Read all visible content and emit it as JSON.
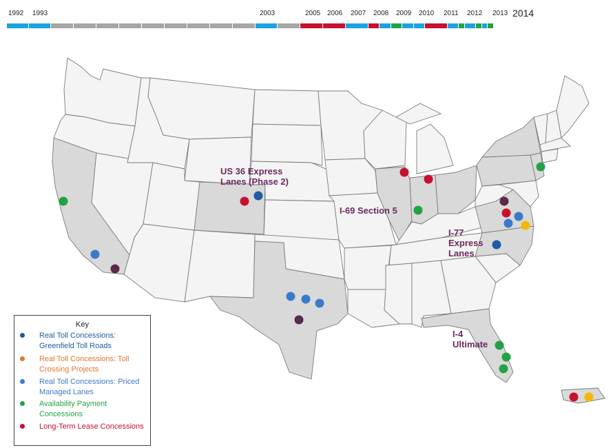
{
  "timeline": {
    "years": [
      "1992",
      "1993",
      "2003",
      "2005",
      "2006",
      "2007",
      "2008",
      "2009",
      "2010",
      "2011",
      "2012",
      "2013",
      "2014"
    ],
    "segment_colors": [
      "#1aa3e0",
      "#1aa3e0",
      "#a6a6a6",
      "#a6a6a6",
      "#a6a6a6",
      "#a6a6a6",
      "#a6a6a6",
      "#a6a6a6",
      "#a6a6a6",
      "#a6a6a6",
      "#a6a6a6",
      "#1aa3e0",
      "#a6a6a6",
      "#c8102e",
      "#c8102e",
      "#1aa3e0",
      "#c8102e",
      "#1aa3e0",
      "#22a245",
      "#1aa3e0",
      "#1aa3e0",
      "#c8102e",
      "#1aa3e0",
      "#22a245",
      "#1aa3e0",
      "#22a245",
      "#1aa3e0",
      "#22a245"
    ]
  },
  "map_labels": {
    "us36": "US 36 Express Lanes (Phase 2)",
    "i69": "I-69 Section 5",
    "i77": "I-77 Express Lanes",
    "i4": "I-4 Ultimate"
  },
  "key": {
    "title": "Key",
    "items": [
      {
        "label": "Real Toll Concessions: Greenfield Toll Roads",
        "color": "#1d5c9e"
      },
      {
        "label": "Real Toll Concessions: Toll Crossing Projects",
        "color": "#e0762b"
      },
      {
        "label": "Real Toll Concessions: Priced Managed Lanes",
        "color": "#3a7bc8"
      },
      {
        "label": "Availability Payment Concessions",
        "color": "#22a245"
      },
      {
        "label": "Long-Term Lease Concessions",
        "color": "#c8102e"
      }
    ]
  },
  "colors": {
    "active_state": "#d9d9d9",
    "inactive_state": "#f4f4f5",
    "label_purple": "#6a2a5c",
    "other_project": "#5a2a4a",
    "yellow_project": "#f5b800"
  },
  "highlighted_states": [
    "California",
    "Colorado",
    "Texas",
    "Illinois",
    "Indiana",
    "Ohio",
    "Pennsylvania",
    "New York",
    "New Jersey",
    "Virginia",
    "North Carolina",
    "Florida",
    "Puerto Rico"
  ],
  "projects": [
    {
      "state": "California",
      "type": "Availability Payment Concessions",
      "color": "#22a245"
    },
    {
      "state": "California",
      "type": "Real Toll Concessions: Priced Managed Lanes",
      "color": "#3a7bc8"
    },
    {
      "state": "California",
      "type": "other",
      "color": "#5a2a4a"
    },
    {
      "state": "Colorado",
      "type": "Long-Term Lease Concessions",
      "color": "#c8102e"
    },
    {
      "state": "Colorado",
      "type": "Real Toll Concessions: Greenfield Toll Roads",
      "color": "#1d5c9e"
    },
    {
      "state": "Texas",
      "type": "Real Toll Concessions: Priced Managed Lanes",
      "color": "#3a7bc8"
    },
    {
      "state": "Texas",
      "type": "Real Toll Concessions: Priced Managed Lanes",
      "color": "#3a7bc8"
    },
    {
      "state": "Texas",
      "type": "Real Toll Concessions: Priced Managed Lanes",
      "color": "#3a7bc8"
    },
    {
      "state": "Texas",
      "type": "other",
      "color": "#5a2a4a"
    },
    {
      "state": "Illinois",
      "type": "Long-Term Lease Concessions",
      "color": "#c8102e"
    },
    {
      "state": "Indiana",
      "type": "Long-Term Lease Concessions",
      "color": "#c8102e"
    },
    {
      "state": "Indiana",
      "type": "Availability Payment Concessions",
      "color": "#22a245"
    },
    {
      "state": "New Jersey",
      "type": "Availability Payment Concessions",
      "color": "#22a245"
    },
    {
      "state": "Virginia",
      "type": "other",
      "color": "#5a2a4a"
    },
    {
      "state": "Virginia",
      "type": "Long-Term Lease Concessions",
      "color": "#c8102e"
    },
    {
      "state": "Virginia",
      "type": "Real Toll Concessions: Priced Managed Lanes",
      "color": "#3a7bc8"
    },
    {
      "state": "Virginia",
      "type": "Real Toll Concessions: Priced Managed Lanes",
      "color": "#3a7bc8"
    },
    {
      "state": "Virginia",
      "type": "other",
      "color": "#f5b800"
    },
    {
      "state": "North Carolina",
      "type": "Real Toll Concessions: Greenfield Toll Roads",
      "color": "#1d5c9e"
    },
    {
      "state": "Florida",
      "type": "Availability Payment Concessions",
      "color": "#22a245"
    },
    {
      "state": "Florida",
      "type": "Availability Payment Concessions",
      "color": "#22a245"
    },
    {
      "state": "Florida",
      "type": "Availability Payment Concessions",
      "color": "#22a245"
    },
    {
      "state": "Puerto Rico",
      "type": "Long-Term Lease Concessions",
      "color": "#c8102e"
    },
    {
      "state": "Puerto Rico",
      "type": "other",
      "color": "#f5b800"
    }
  ]
}
